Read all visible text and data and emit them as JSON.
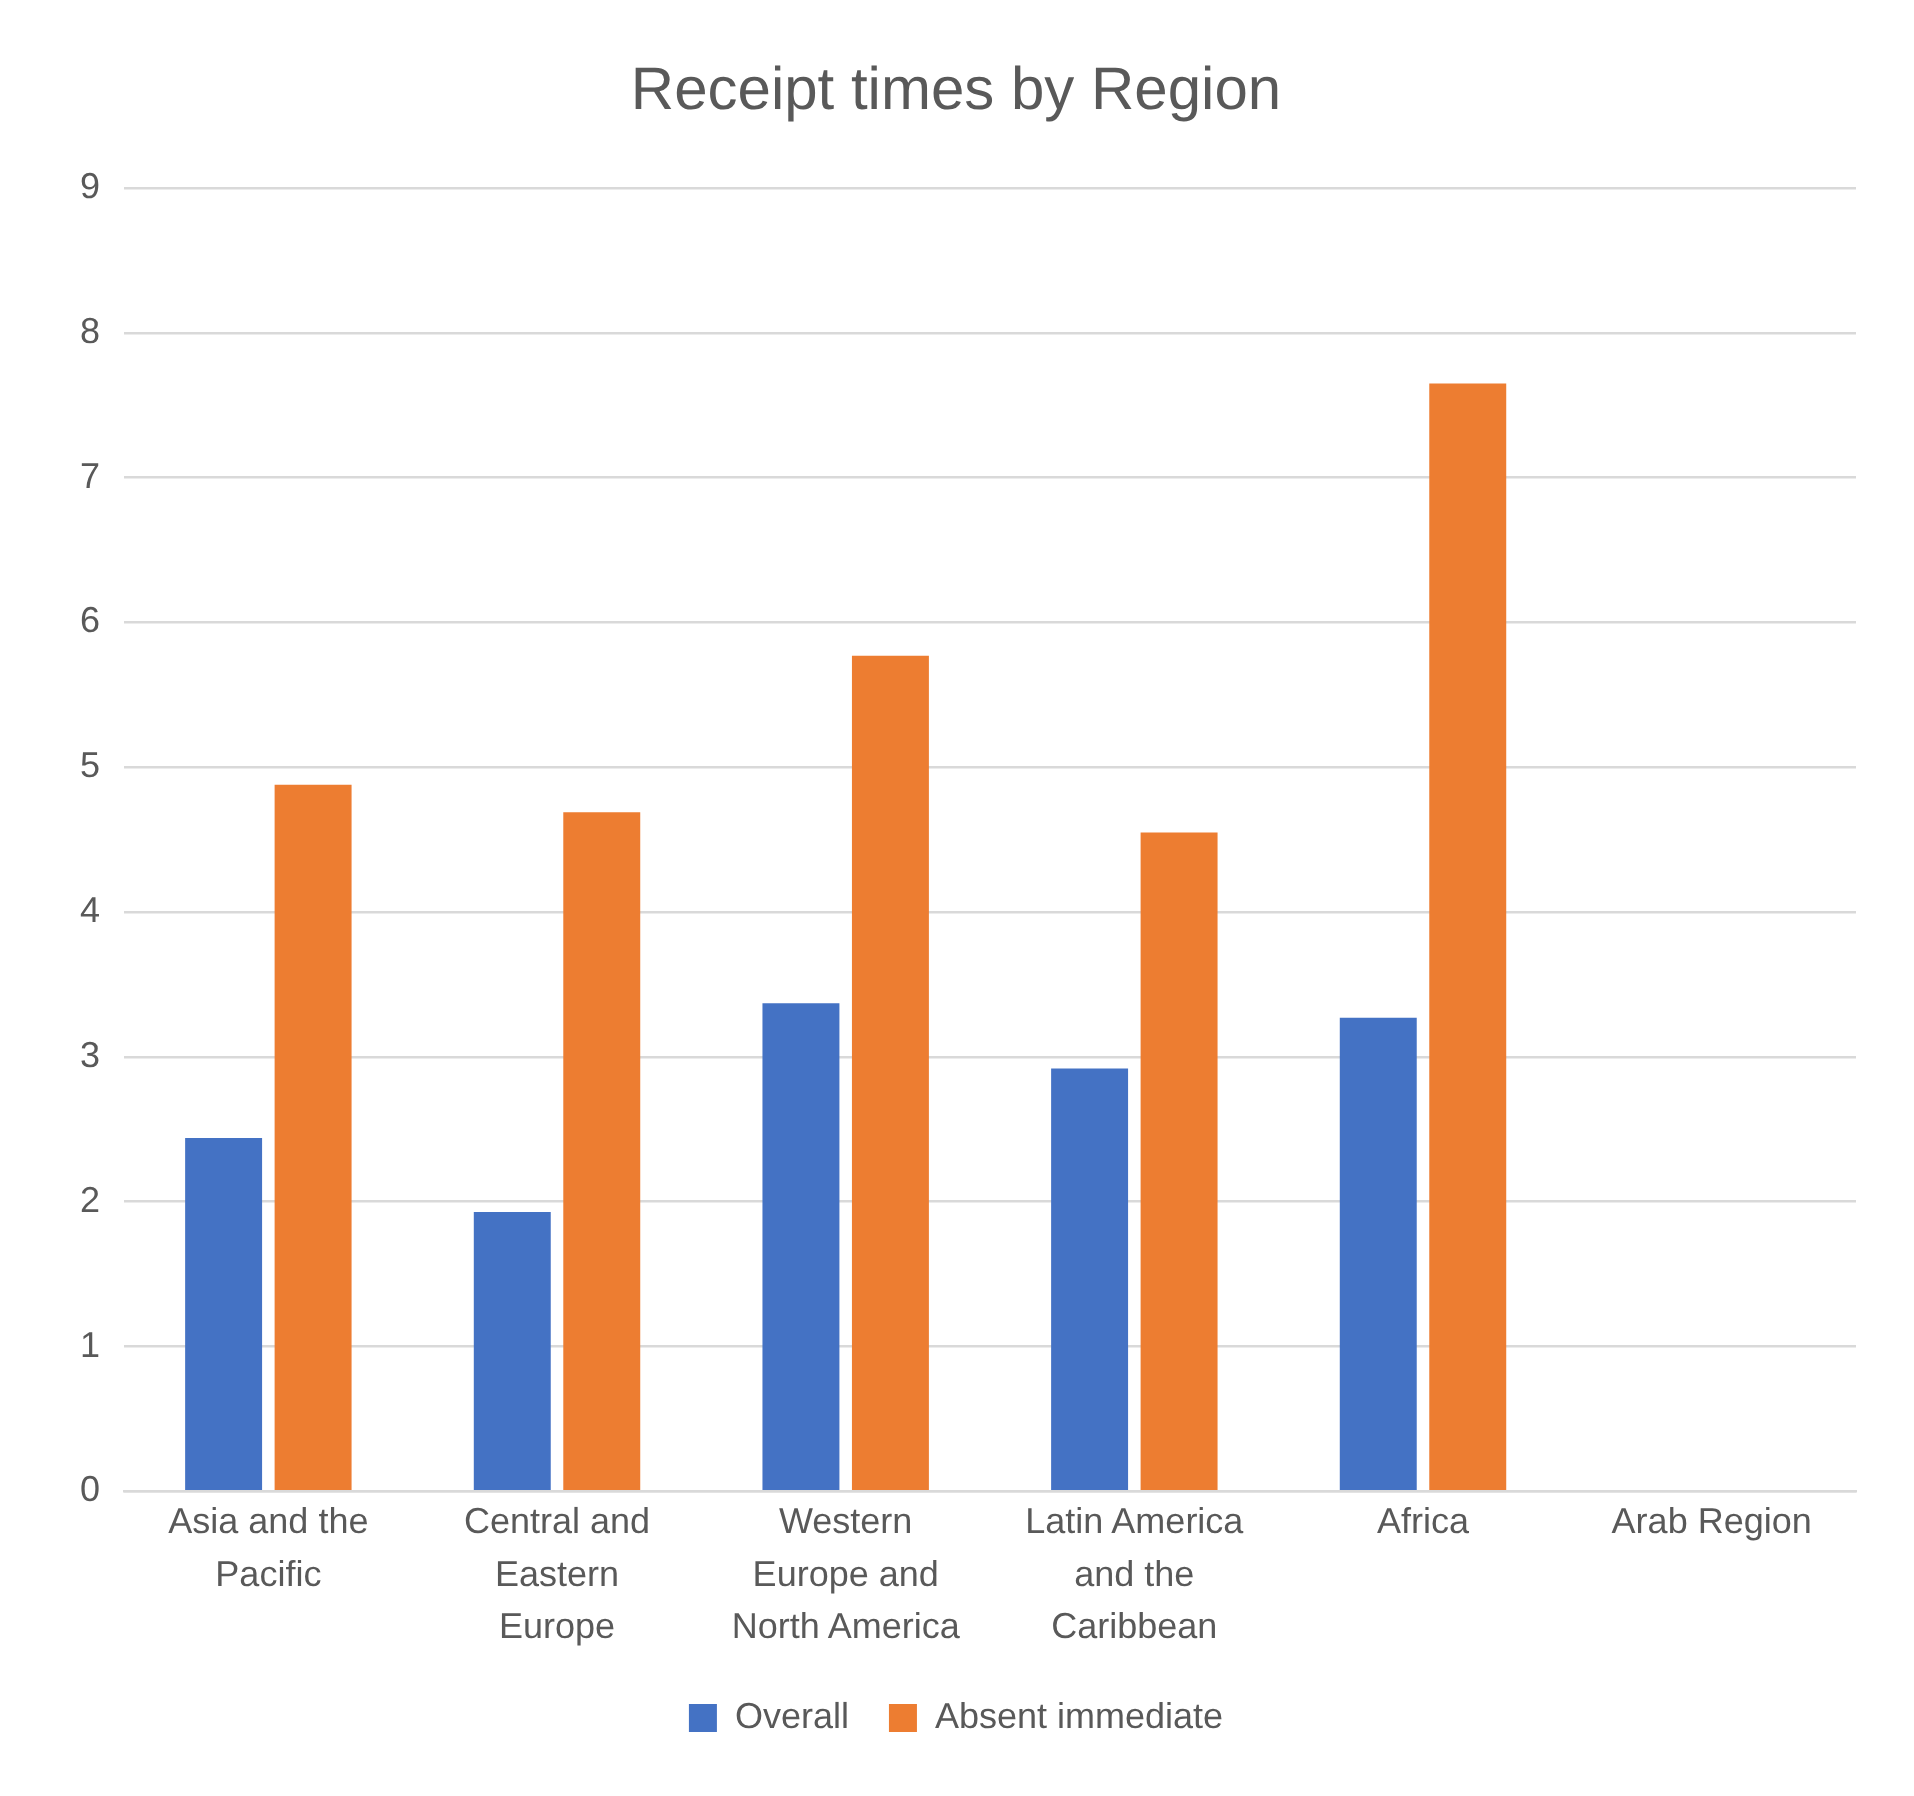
{
  "chart_data": {
    "type": "bar",
    "title": "Receipt times by Region",
    "categories": [
      "Asia and the Pacific",
      "Central and Eastern Europe",
      "Western Europe and North America",
      "Latin America and the Caribbean",
      "Africa",
      "Arab Region"
    ],
    "series": [
      {
        "name": "Overall",
        "color": "#4472c4",
        "values": [
          2.44,
          1.93,
          3.37,
          2.92,
          3.27,
          null
        ]
      },
      {
        "name": "Absent immediate",
        "color": "#ed7d31",
        "values": [
          4.88,
          4.69,
          5.77,
          4.55,
          7.65,
          null
        ]
      }
    ],
    "ylim": [
      0,
      9
    ],
    "yticks": [
      0,
      1,
      2,
      3,
      4,
      5,
      6,
      7,
      8,
      9
    ],
    "grid": "y",
    "legend": "bottom"
  }
}
